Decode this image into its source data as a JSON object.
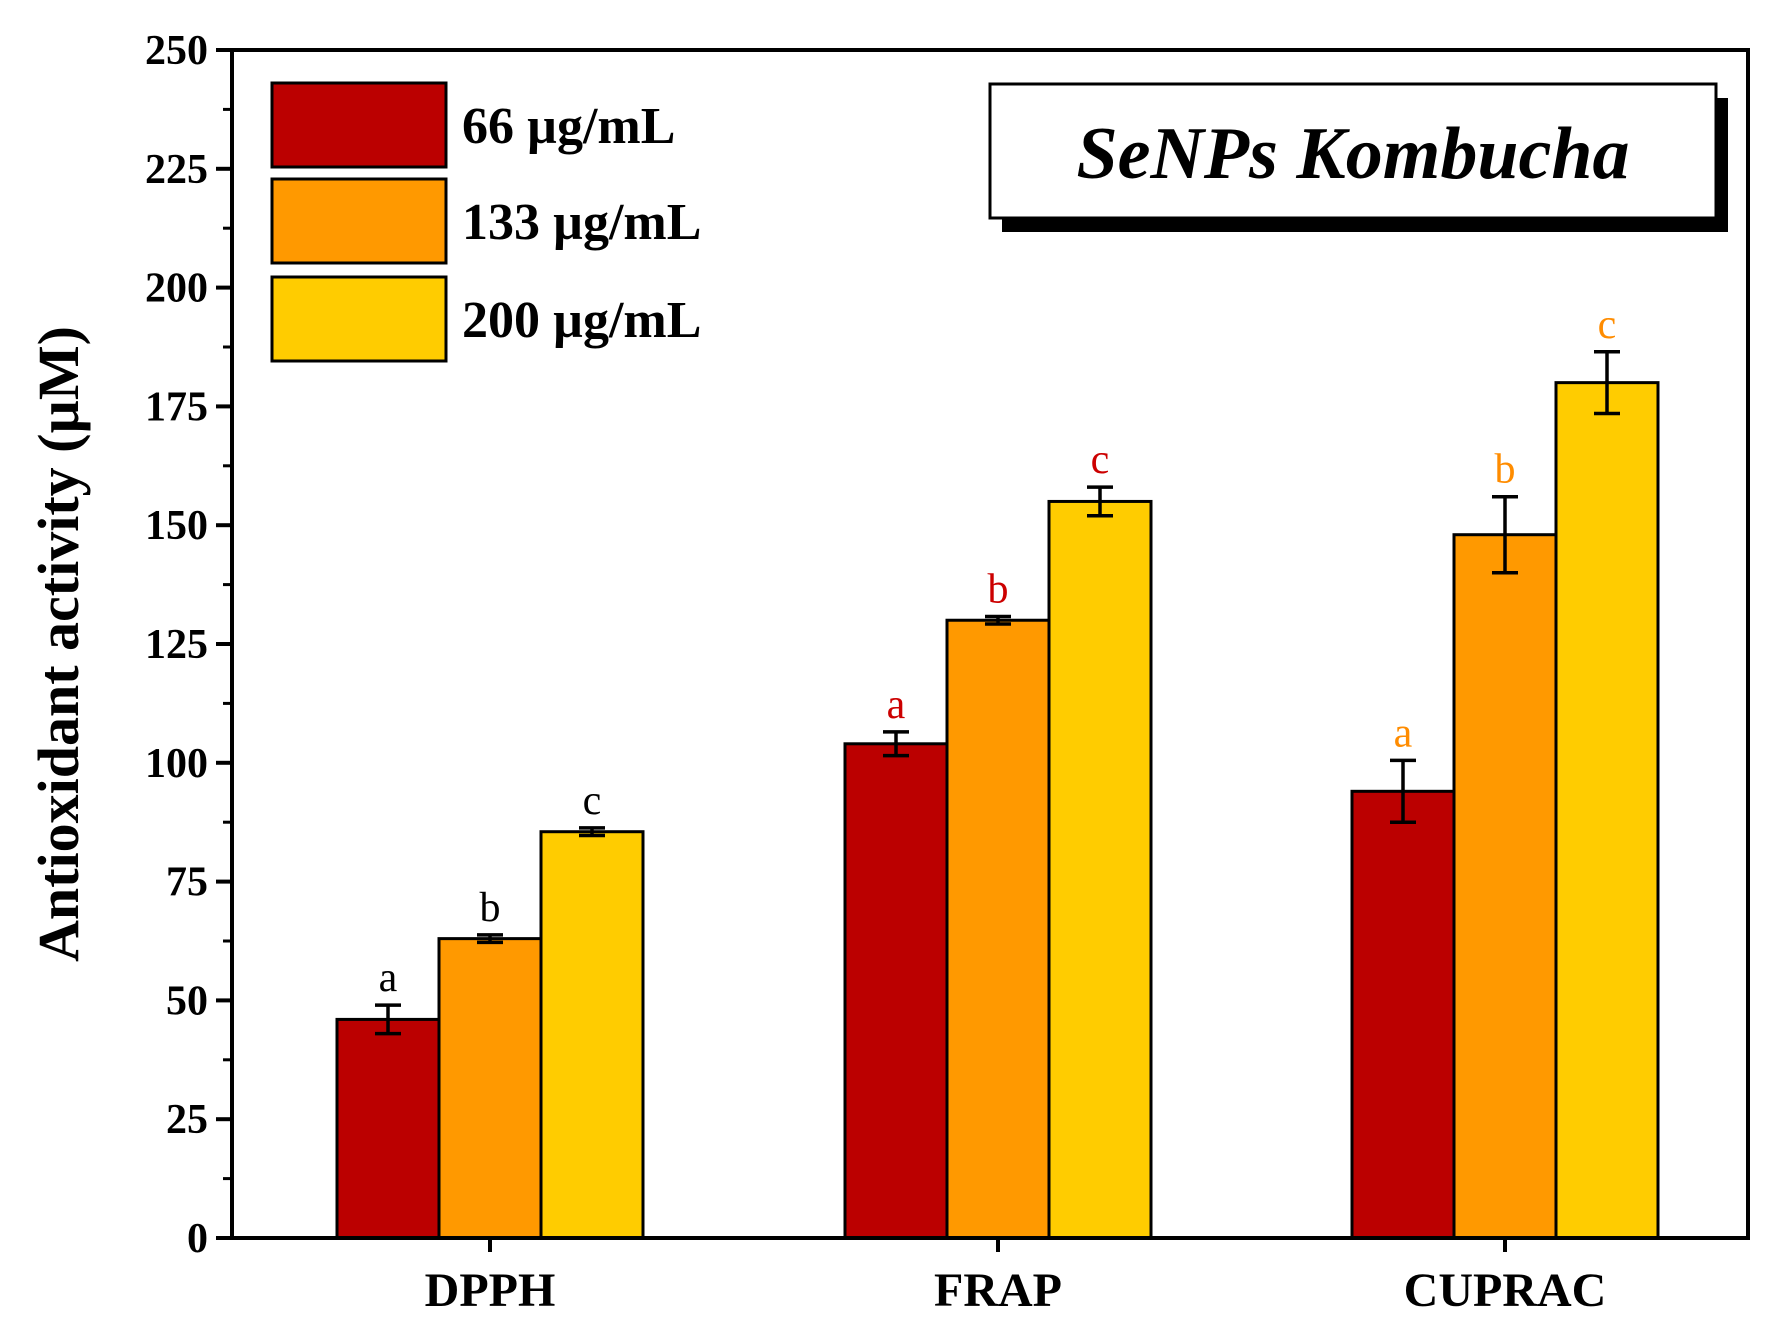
{
  "chart_data": {
    "type": "bar",
    "title": "SeNPs Kombucha",
    "xlabel": "",
    "ylabel": "Antioxidant activity (µM)",
    "ylim": [
      0,
      250
    ],
    "yticks": [
      0,
      25,
      50,
      75,
      100,
      125,
      150,
      175,
      200,
      225,
      250
    ],
    "categories": [
      "DPPH",
      "FRAP",
      "CUPRAC"
    ],
    "legend_position": "top-left",
    "series": [
      {
        "name": "66 µg/mL",
        "color": "#BB0000",
        "values": [
          46,
          104,
          94
        ],
        "errors": [
          3,
          2.5,
          6.5
        ],
        "letters": [
          "a",
          "a",
          "a"
        ]
      },
      {
        "name": "133 µg/mL",
        "color": "#FF9900",
        "values": [
          63,
          130,
          148
        ],
        "errors": [
          0.8,
          0.8,
          8
        ],
        "letters": [
          "b",
          "b",
          "b"
        ]
      },
      {
        "name": "200 µg/mL",
        "color": "#FFCC00",
        "values": [
          85.5,
          155,
          180
        ],
        "errors": [
          0.8,
          3,
          6.5
        ],
        "letters": [
          "c",
          "c",
          "c"
        ]
      }
    ],
    "letter_colors": [
      "#000000",
      "#CC0000",
      "#FF8C00"
    ]
  }
}
